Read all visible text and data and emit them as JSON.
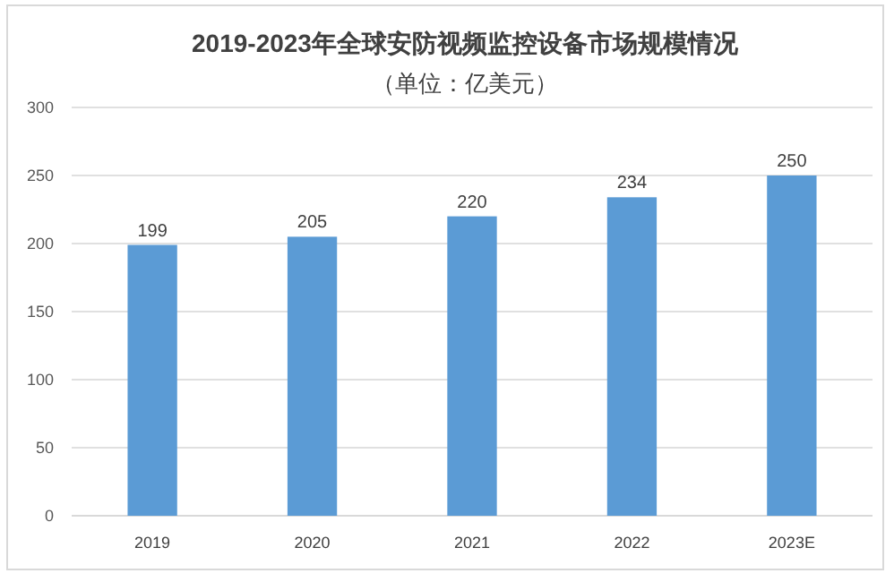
{
  "chart_data": {
    "type": "bar",
    "title": "2019-2023年全球安防视频监控设备市场规模情况",
    "subtitle": "（单位：亿美元）",
    "categories": [
      "2019",
      "2020",
      "2021",
      "2022",
      "2023E"
    ],
    "values": [
      199,
      205,
      220,
      234,
      250
    ],
    "color": "#5b9bd5",
    "data_labels": true,
    "ylim": [
      0,
      300
    ],
    "yticks": [
      0,
      50,
      100,
      150,
      200,
      250,
      300
    ],
    "grid": "y"
  }
}
